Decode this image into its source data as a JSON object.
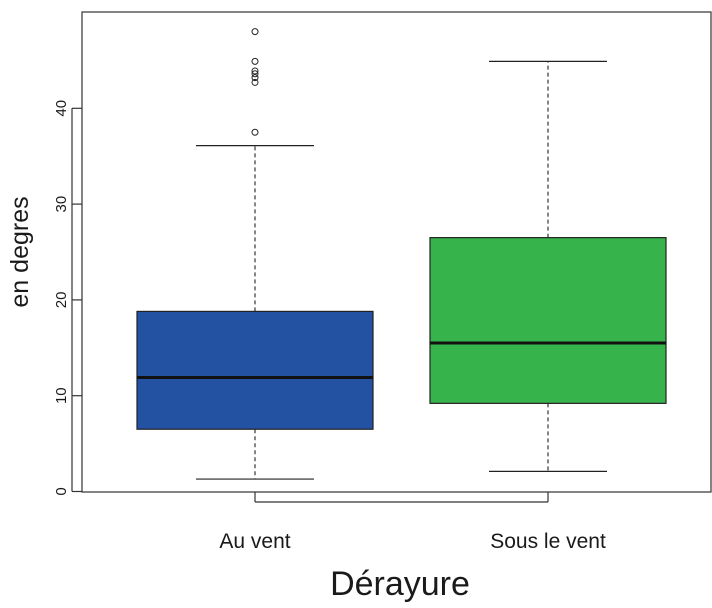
{
  "chart_data": {
    "type": "boxplot",
    "title": "",
    "xlabel": "Dérayure",
    "ylabel": "en degres",
    "ylim": [
      -1.5,
      50
    ],
    "yticks": [
      0,
      10,
      20,
      30,
      40
    ],
    "grid": false,
    "categories": [
      "Au vent",
      "Sous le vent"
    ],
    "boxes": [
      {
        "name": "Au vent",
        "color": "#2352a3",
        "whisker_low": 1.3,
        "q1": 6.5,
        "median": 11.9,
        "q3": 18.8,
        "whisker_high": 36.1,
        "outliers": [
          37.5,
          42.7,
          43.2,
          43.6,
          43.9,
          44.9,
          48.0
        ]
      },
      {
        "name": "Sous le vent",
        "color": "#36b34a",
        "whisker_low": 2.1,
        "q1": 9.2,
        "median": 15.5,
        "q3": 26.5,
        "whisker_high": 44.9,
        "outliers": []
      }
    ]
  }
}
